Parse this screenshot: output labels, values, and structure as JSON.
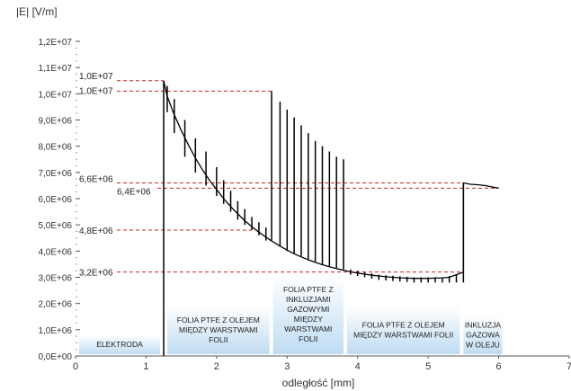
{
  "chart_data": {
    "type": "line",
    "ylabel": "|E| [V/m]",
    "xlabel": "odległość [mm]",
    "xlim": [
      0,
      7
    ],
    "ylim": [
      0,
      12000000
    ],
    "x_ticks": [
      0,
      1,
      2,
      3,
      4,
      5,
      6,
      7
    ],
    "x_tick_labels": [
      "0",
      "1",
      "2",
      "3",
      "4",
      "5",
      "6",
      "7"
    ],
    "y_ticks": [
      0,
      1000000,
      2000000,
      3000000,
      4000000,
      5000000,
      6000000,
      7000000,
      8000000,
      9000000,
      10000000,
      11000000,
      12000000
    ],
    "y_tick_labels": [
      "0,0E+00",
      "1,0E+06",
      "2,0E+06",
      "3,0E+06",
      "4,0E+06",
      "5,0E+06",
      "6,0E+06",
      "7,0E+06",
      "8,0E+06",
      "9,0E+06",
      "1,0E+07",
      "1,1E+07",
      "1,2E+07"
    ],
    "grid": false,
    "colors": {
      "curve": "#000000",
      "reference": "#cc2222",
      "region_box": "#bfdcf2",
      "axis": "#555555"
    },
    "series": [
      {
        "values_note": "",
        "x": [
          1.25,
          1.3,
          1.4,
          1.5,
          1.6,
          1.7,
          1.8,
          1.9,
          2.0,
          2.1,
          2.2,
          2.3,
          2.4,
          2.5,
          2.6,
          2.7,
          2.8,
          2.9,
          3.0,
          3.1,
          3.2,
          3.3,
          3.4,
          3.5,
          3.6,
          3.7,
          3.8,
          3.9,
          4.0,
          4.1,
          4.2,
          4.3,
          4.4,
          4.5,
          4.6,
          4.7,
          4.8,
          4.9,
          5.0,
          5.1,
          5.2,
          5.3,
          5.4,
          5.5,
          5.5,
          5.6,
          5.7,
          5.8,
          5.9,
          6.0
        ],
        "y": [
          10500000,
          9900000,
          9200000,
          8600000,
          8050000,
          7550000,
          7100000,
          6700000,
          6350000,
          6000000,
          5700000,
          5420000,
          5160000,
          4930000,
          4720000,
          4530000,
          4350000,
          4190000,
          4040000,
          3900000,
          3780000,
          3670000,
          3570000,
          3480000,
          3400000,
          3330000,
          3270000,
          3210000,
          3160000,
          3120000,
          3080000,
          3050000,
          3020000,
          3000000,
          2980000,
          2970000,
          2960000,
          2960000,
          2960000,
          2970000,
          2980000,
          3000000,
          3100000,
          3200000,
          6600000,
          6550000,
          6530000,
          6500000,
          6450000,
          6400000
        ]
      }
    ],
    "spikes": [
      {
        "x": 1.25,
        "y_low": 0,
        "y_high": 10500000
      },
      {
        "x": 1.3,
        "y_low": 9300000,
        "y_high": 10300000
      },
      {
        "x": 1.4,
        "y_low": 8500000,
        "y_high": 9800000
      },
      {
        "x": 1.55,
        "y_low": 7600000,
        "y_high": 9000000
      },
      {
        "x": 1.7,
        "y_low": 7000000,
        "y_high": 8300000
      },
      {
        "x": 1.85,
        "y_low": 6500000,
        "y_high": 7800000
      },
      {
        "x": 2.0,
        "y_low": 6100000,
        "y_high": 7200000
      },
      {
        "x": 2.1,
        "y_low": 5800000,
        "y_high": 6700000
      },
      {
        "x": 2.2,
        "y_low": 5500000,
        "y_high": 6300000
      },
      {
        "x": 2.3,
        "y_low": 5200000,
        "y_high": 5900000
      },
      {
        "x": 2.4,
        "y_low": 5000000,
        "y_high": 5600000
      },
      {
        "x": 2.5,
        "y_low": 4800000,
        "y_high": 5300000
      },
      {
        "x": 2.6,
        "y_low": 4600000,
        "y_high": 5100000
      },
      {
        "x": 2.7,
        "y_low": 4400000,
        "y_high": 4900000
      },
      {
        "x": 2.78,
        "y_low": 4400000,
        "y_high": 10100000
      },
      {
        "x": 2.9,
        "y_low": 4200000,
        "y_high": 9700000
      },
      {
        "x": 3.0,
        "y_low": 4000000,
        "y_high": 9400000
      },
      {
        "x": 3.1,
        "y_low": 3900000,
        "y_high": 9100000
      },
      {
        "x": 3.2,
        "y_low": 3800000,
        "y_high": 8800000
      },
      {
        "x": 3.3,
        "y_low": 3700000,
        "y_high": 8500000
      },
      {
        "x": 3.4,
        "y_low": 3600000,
        "y_high": 8200000
      },
      {
        "x": 3.5,
        "y_low": 3500000,
        "y_high": 8000000
      },
      {
        "x": 3.6,
        "y_low": 3400000,
        "y_high": 7800000
      },
      {
        "x": 3.7,
        "y_low": 3350000,
        "y_high": 7600000
      },
      {
        "x": 3.8,
        "y_low": 3300000,
        "y_high": 7500000
      },
      {
        "x": 3.9,
        "y_low": 3100000,
        "y_high": 3300000
      },
      {
        "x": 4.0,
        "y_low": 3050000,
        "y_high": 3250000
      },
      {
        "x": 4.1,
        "y_low": 3000000,
        "y_high": 3200000
      },
      {
        "x": 4.2,
        "y_low": 2950000,
        "y_high": 3150000
      },
      {
        "x": 4.3,
        "y_low": 2900000,
        "y_high": 3100000
      },
      {
        "x": 4.4,
        "y_low": 2880000,
        "y_high": 3080000
      },
      {
        "x": 4.5,
        "y_low": 2860000,
        "y_high": 3060000
      },
      {
        "x": 4.6,
        "y_low": 2840000,
        "y_high": 3040000
      },
      {
        "x": 4.7,
        "y_low": 2820000,
        "y_high": 3020000
      },
      {
        "x": 4.8,
        "y_low": 2800000,
        "y_high": 3000000
      },
      {
        "x": 4.9,
        "y_low": 2800000,
        "y_high": 3000000
      },
      {
        "x": 5.0,
        "y_low": 2800000,
        "y_high": 3000000
      },
      {
        "x": 5.1,
        "y_low": 2800000,
        "y_high": 3000000
      },
      {
        "x": 5.2,
        "y_low": 2800000,
        "y_high": 3000000
      },
      {
        "x": 5.3,
        "y_low": 2800000,
        "y_high": 3050000
      },
      {
        "x": 5.4,
        "y_low": 2800000,
        "y_high": 3100000
      },
      {
        "x": 5.5,
        "y_low": 2800000,
        "y_high": 6600000
      }
    ],
    "reference_lines": [
      {
        "label": "1,0E+07",
        "value": 10500000,
        "x_to": 1.25
      },
      {
        "label": "1,0E+07",
        "value": 10100000,
        "x_to": 2.78
      },
      {
        "label": "6,6E+06",
        "value": 6600000,
        "x_to": 5.5
      },
      {
        "label": "6,4E+06",
        "value": 6400000,
        "x_to": 6.0
      },
      {
        "label": "4,8E+06",
        "value": 4800000,
        "x_to": 2.5
      },
      {
        "label": "3,2E+06",
        "value": 3200000,
        "x_to": 5.5
      }
    ],
    "regions": [
      {
        "label": "ELEKTRODA",
        "x_from": 0.05,
        "x_to": 1.2,
        "y_top": 800000
      },
      {
        "label": "FOLIA PTFE Z OLEJEM MIĘDZY WARSTWAMI FOLII",
        "x_from": 1.3,
        "x_to": 2.75,
        "y_top": 1900000
      },
      {
        "label": "FOLIA PTFE Z INKLUZJAMI GAZOWYMI MIĘDZY WARSTWAMI FOLII",
        "x_from": 2.8,
        "x_to": 3.8,
        "y_top": 3100000
      },
      {
        "label": "FOLIA PTFE Z OLEJEM MIĘDZY WARSTWAMI FOLII",
        "x_from": 3.85,
        "x_to": 5.45,
        "y_top": 1900000
      },
      {
        "label": "INKLUZJA GAZOWA W OLEJU",
        "x_from": 5.5,
        "x_to": 6.05,
        "y_top": 1500000
      }
    ]
  }
}
